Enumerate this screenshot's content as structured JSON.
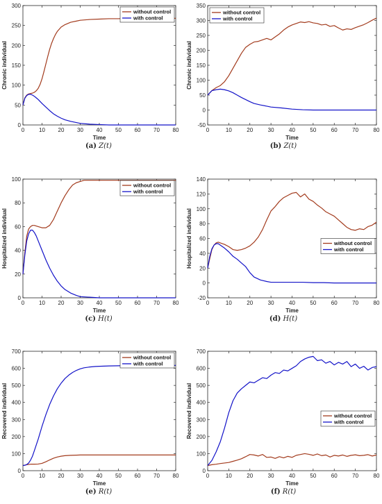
{
  "colors": {
    "without": "#a23a1c",
    "with": "#1212c8"
  },
  "chart_data": [
    {
      "type": "line",
      "panel": "a",
      "caption": {
        "label": "(a)",
        "eq": "Z(t)"
      },
      "xlabel": "Time",
      "ylabel": "Chronic individual",
      "xlim": [
        0,
        80
      ],
      "ylim": [
        0,
        300
      ],
      "xticks": [
        "0",
        "10",
        "20",
        "30",
        "40",
        "50",
        "60",
        "70",
        "80"
      ],
      "yticks": [
        "0",
        "50",
        "100",
        "150",
        "200",
        "250",
        "300"
      ],
      "legend": "top-right",
      "series": [
        {
          "name": "without control",
          "color": "without",
          "x": [
            0,
            1,
            2,
            3,
            4,
            5,
            6,
            7,
            8,
            9,
            10,
            11,
            12,
            13,
            14,
            15,
            16,
            17,
            18,
            20,
            22,
            25,
            28,
            30,
            35,
            40,
            45,
            50,
            55,
            60,
            70,
            80
          ],
          "y": [
            50,
            68,
            75,
            78,
            79,
            80,
            82,
            86,
            92,
            102,
            116,
            134,
            153,
            172,
            190,
            205,
            217,
            227,
            235,
            246,
            252,
            258,
            261,
            263,
            265,
            266,
            267,
            267,
            268,
            268,
            268,
            268
          ]
        },
        {
          "name": "with control",
          "color": "with",
          "x": [
            0,
            1,
            2,
            3,
            4,
            5,
            6,
            7,
            8,
            9,
            10,
            12,
            14,
            16,
            18,
            20,
            22,
            25,
            28,
            30,
            35,
            40,
            45,
            50,
            60,
            70,
            80
          ],
          "y": [
            50,
            67,
            74,
            77,
            77,
            75,
            72,
            68,
            64,
            59,
            54,
            45,
            36,
            28,
            22,
            17,
            13,
            9,
            6,
            4,
            2,
            1,
            0,
            0,
            0,
            0,
            0
          ]
        }
      ]
    },
    {
      "type": "line",
      "panel": "b",
      "caption": {
        "label": "(b)",
        "eq": "Z(t)"
      },
      "xlabel": "Time",
      "ylabel": "Chronic individual",
      "xlim": [
        0,
        80
      ],
      "ylim": [
        -50,
        350
      ],
      "xticks": [
        "0",
        "10",
        "20",
        "30",
        "40",
        "50",
        "60",
        "70",
        "80"
      ],
      "yticks": [
        "-50",
        "0",
        "50",
        "100",
        "150",
        "200",
        "250",
        "300",
        "350"
      ],
      "legend": "top-left",
      "series": [
        {
          "name": "without control",
          "color": "without",
          "x": [
            0,
            2,
            4,
            6,
            8,
            10,
            12,
            14,
            16,
            18,
            20,
            22,
            24,
            26,
            28,
            30,
            32,
            34,
            36,
            38,
            40,
            42,
            44,
            46,
            48,
            50,
            52,
            54,
            56,
            58,
            60,
            62,
            64,
            66,
            68,
            70,
            72,
            74,
            76,
            78,
            80
          ],
          "y": [
            50,
            65,
            75,
            82,
            95,
            115,
            140,
            165,
            190,
            210,
            220,
            228,
            230,
            235,
            240,
            235,
            245,
            255,
            268,
            278,
            285,
            290,
            295,
            293,
            296,
            292,
            290,
            285,
            287,
            280,
            283,
            275,
            268,
            272,
            270,
            276,
            281,
            286,
            293,
            301,
            308
          ]
        },
        {
          "name": "with control",
          "color": "with",
          "x": [
            0,
            2,
            4,
            6,
            8,
            10,
            12,
            14,
            16,
            18,
            20,
            22,
            25,
            28,
            30,
            35,
            40,
            45,
            50,
            60,
            70,
            80
          ],
          "y": [
            50,
            65,
            68,
            70,
            68,
            64,
            58,
            50,
            42,
            35,
            28,
            22,
            17,
            13,
            10,
            7,
            3,
            1,
            0,
            0,
            0,
            0
          ]
        }
      ]
    },
    {
      "type": "line",
      "panel": "c",
      "caption": {
        "label": "(c)",
        "eq": "H(t)"
      },
      "xlabel": "Time",
      "ylabel": "Hospitalized individual",
      "xlim": [
        0,
        80
      ],
      "ylim": [
        0,
        100
      ],
      "xticks": [
        "0",
        "10",
        "20",
        "30",
        "40",
        "50",
        "60",
        "70",
        "80"
      ],
      "yticks": [
        "0",
        "20",
        "40",
        "60",
        "80",
        "100"
      ],
      "legend": "top-right",
      "series": [
        {
          "name": "without control",
          "color": "without",
          "x": [
            0,
            1,
            2,
            3,
            4,
            5,
            6,
            8,
            10,
            12,
            14,
            16,
            18,
            20,
            22,
            24,
            26,
            28,
            30,
            32,
            34,
            36,
            38,
            40,
            45,
            50,
            60,
            70,
            80
          ],
          "y": [
            20,
            38,
            52,
            58,
            60,
            61,
            61,
            60,
            59,
            59,
            61,
            66,
            73,
            80,
            86,
            91,
            95,
            97,
            98,
            99,
            99,
            99,
            99,
            99,
            99,
            99,
            99,
            99,
            99
          ]
        },
        {
          "name": "with control",
          "color": "with",
          "x": [
            0,
            1,
            2,
            3,
            4,
            5,
            6,
            7,
            8,
            10,
            12,
            14,
            16,
            18,
            20,
            22,
            25,
            28,
            30,
            35,
            40,
            45,
            50,
            60,
            70,
            80
          ],
          "y": [
            20,
            36,
            48,
            54,
            57,
            57,
            55,
            52,
            48,
            40,
            32,
            25,
            19,
            14,
            10,
            7,
            4,
            2,
            1,
            0.5,
            0,
            0,
            0,
            0,
            0,
            0
          ]
        }
      ]
    },
    {
      "type": "line",
      "panel": "d",
      "caption": {
        "label": "(d)",
        "eq": "H(t)"
      },
      "xlabel": "Time",
      "ylabel": "Hospitalized individual",
      "xlim": [
        0,
        80
      ],
      "ylim": [
        -20,
        140
      ],
      "xticks": [
        "0",
        "10",
        "20",
        "30",
        "40",
        "50",
        "60",
        "70",
        "80"
      ],
      "yticks": [
        "-20",
        "0",
        "20",
        "40",
        "60",
        "80",
        "100",
        "120",
        "140"
      ],
      "legend": "mid-right",
      "series": [
        {
          "name": "without control",
          "color": "without",
          "x": [
            0,
            1,
            2,
            3,
            4,
            5,
            6,
            8,
            10,
            12,
            14,
            16,
            18,
            20,
            22,
            24,
            26,
            28,
            30,
            32,
            34,
            36,
            38,
            40,
            42,
            44,
            46,
            48,
            50,
            52,
            54,
            56,
            58,
            60,
            62,
            64,
            66,
            68,
            70,
            72,
            74,
            76,
            78,
            80
          ],
          "y": [
            20,
            33,
            45,
            51,
            54,
            55,
            54,
            52,
            49,
            45,
            44,
            45,
            47,
            50,
            55,
            62,
            72,
            85,
            97,
            103,
            110,
            115,
            118,
            121,
            122,
            116,
            120,
            113,
            110,
            105,
            101,
            96,
            93,
            90,
            85,
            80,
            75,
            72,
            71,
            73,
            72,
            76,
            78,
            82
          ]
        },
        {
          "name": "with control",
          "color": "with",
          "x": [
            0,
            1,
            2,
            3,
            4,
            5,
            6,
            8,
            10,
            12,
            14,
            16,
            18,
            20,
            22,
            25,
            28,
            30,
            35,
            40,
            45,
            50,
            55,
            60,
            65,
            70,
            75,
            80
          ],
          "y": [
            20,
            36,
            46,
            51,
            53,
            53,
            51,
            47,
            42,
            36,
            32,
            27,
            22,
            14,
            8,
            4,
            2,
            1,
            1,
            1,
            1,
            0.5,
            0.5,
            0,
            0,
            0,
            0,
            0
          ]
        }
      ]
    },
    {
      "type": "line",
      "panel": "e",
      "caption": {
        "label": "(e)",
        "eq": "R(t)"
      },
      "xlabel": "Time",
      "ylabel": "Recovered individual",
      "xlim": [
        0,
        80
      ],
      "ylim": [
        0,
        700
      ],
      "xticks": [
        "0",
        "10",
        "20",
        "30",
        "40",
        "50",
        "60",
        "70",
        "80"
      ],
      "yticks": [
        "0",
        "100",
        "200",
        "300",
        "400",
        "500",
        "600",
        "700"
      ],
      "legend": "top-right",
      "series": [
        {
          "name": "without control",
          "color": "without",
          "x": [
            0,
            2,
            4,
            6,
            8,
            10,
            12,
            14,
            16,
            18,
            20,
            22,
            25,
            28,
            30,
            35,
            40,
            50,
            60,
            70,
            80
          ],
          "y": [
            30,
            35,
            38,
            38,
            39,
            43,
            52,
            63,
            73,
            80,
            85,
            88,
            90,
            91,
            92,
            92,
            92,
            92,
            92,
            92,
            92
          ]
        },
        {
          "name": "with control",
          "color": "with",
          "x": [
            0,
            1,
            2,
            3,
            4,
            5,
            6,
            8,
            10,
            12,
            14,
            16,
            18,
            20,
            22,
            24,
            26,
            28,
            30,
            32,
            35,
            38,
            40,
            45,
            50,
            55,
            60,
            65,
            70,
            75,
            80
          ],
          "y": [
            30,
            32,
            36,
            45,
            62,
            85,
            118,
            185,
            260,
            328,
            388,
            438,
            480,
            513,
            540,
            560,
            576,
            588,
            597,
            603,
            608,
            611,
            612,
            614,
            615,
            616,
            616,
            616,
            617,
            617,
            617
          ]
        }
      ]
    },
    {
      "type": "line",
      "panel": "f",
      "caption": {
        "label": "(f)",
        "eq": "R(t)"
      },
      "xlabel": "Time",
      "ylabel": "Recovered individual",
      "xlim": [
        0,
        80
      ],
      "ylim": [
        0,
        700
      ],
      "xticks": [
        "0",
        "10",
        "20",
        "30",
        "40",
        "50",
        "60",
        "70",
        "80"
      ],
      "yticks": [
        "0",
        "100",
        "200",
        "300",
        "400",
        "500",
        "600",
        "700"
      ],
      "legend": "mid-right",
      "series": [
        {
          "name": "without control",
          "color": "without",
          "x": [
            0,
            2,
            4,
            6,
            8,
            10,
            12,
            14,
            16,
            18,
            20,
            22,
            24,
            26,
            28,
            30,
            32,
            34,
            36,
            38,
            40,
            42,
            44,
            46,
            48,
            50,
            52,
            54,
            56,
            58,
            60,
            62,
            64,
            66,
            68,
            70,
            72,
            74,
            76,
            78,
            80
          ],
          "y": [
            30,
            35,
            38,
            42,
            45,
            48,
            55,
            62,
            70,
            82,
            95,
            92,
            86,
            95,
            78,
            80,
            72,
            82,
            75,
            84,
            78,
            90,
            95,
            100,
            96,
            90,
            98,
            88,
            92,
            80,
            90,
            86,
            92,
            84,
            90,
            93,
            88,
            90,
            94,
            86,
            92
          ]
        },
        {
          "name": "with control",
          "color": "with",
          "x": [
            0,
            2,
            4,
            6,
            8,
            10,
            12,
            14,
            16,
            18,
            20,
            22,
            24,
            26,
            28,
            30,
            32,
            34,
            36,
            38,
            40,
            42,
            44,
            46,
            48,
            50,
            52,
            54,
            56,
            58,
            60,
            62,
            64,
            66,
            68,
            70,
            72,
            74,
            76,
            78,
            80
          ],
          "y": [
            30,
            60,
            110,
            170,
            250,
            340,
            410,
            455,
            480,
            500,
            520,
            515,
            530,
            545,
            540,
            560,
            575,
            570,
            590,
            585,
            600,
            615,
            640,
            655,
            665,
            670,
            645,
            650,
            630,
            640,
            620,
            635,
            625,
            640,
            610,
            625,
            600,
            612,
            590,
            605,
            610
          ]
        }
      ]
    }
  ]
}
